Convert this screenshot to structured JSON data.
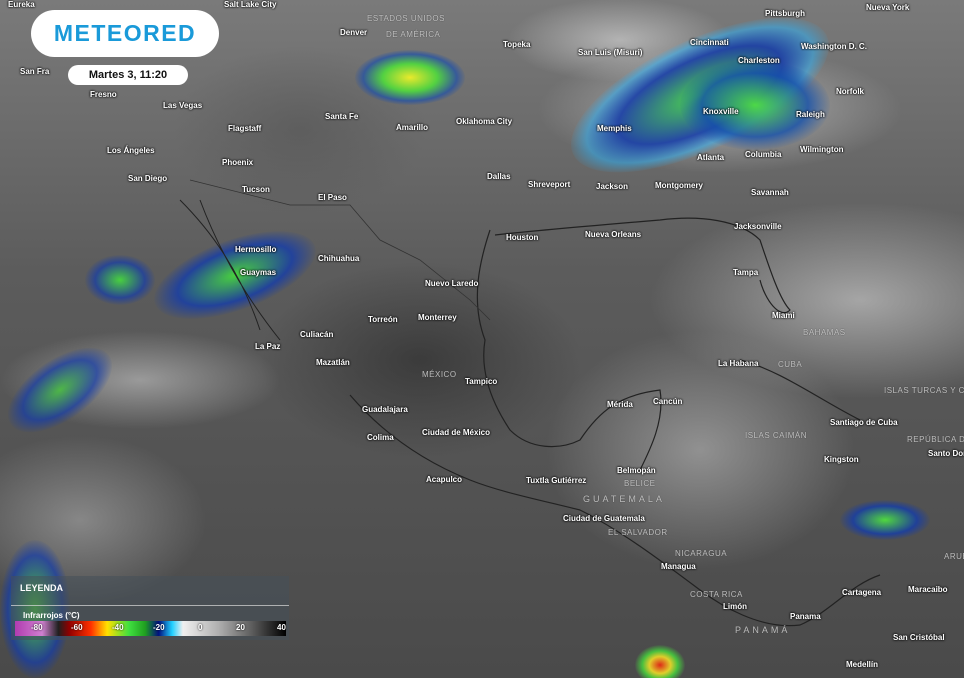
{
  "brand": {
    "logo_text": "METEORED",
    "datetime": "Martes 3, 11:20"
  },
  "legend": {
    "title": "LEYENDA",
    "subtitle": "Infrarrojos (°C)",
    "ticks": [
      "-80",
      "-60",
      "-40",
      "-20",
      "0",
      "20",
      "40"
    ]
  },
  "cities": [
    "Eureka",
    "San Fra",
    "Fresno",
    "Salt Lake City",
    "Las Vegas",
    "Denver",
    "Flagstaff",
    "Santa Fe",
    "Amarillo",
    "Topeka",
    "Oklahoma City",
    "Los Ángeles",
    "Phoenix",
    "San Diego",
    "Tucson",
    "El Paso",
    "Dallas",
    "Shreveport",
    "Jackson",
    "Memphis",
    "Montgomery",
    "Atlanta",
    "Columbia",
    "Savannah",
    "Wilmington",
    "Knoxville",
    "Raleigh",
    "Norfolk",
    "Charleston",
    "Cincinnati",
    "San Luis (Misuri)",
    "Pittsburgh",
    "Washington D. C.",
    "Nueva York",
    "Jacksonville",
    "Houston",
    "Nueva Orleans",
    "Tampa",
    "Miami",
    "Hermosillo",
    "Chihuahua",
    "Guaymas",
    "Nuevo Laredo",
    "Culiacán",
    "Torreón",
    "Monterrey",
    "La Paz",
    "Mazatlán",
    "Tampico",
    "Guadalajara",
    "Colima",
    "Ciudad de México",
    "Acapulco",
    "Mérida",
    "Cancún",
    "La Habana",
    "Santiago de Cuba",
    "Santo Dom",
    "Kingston",
    "Belmopán",
    "Tuxtla Gutiérrez",
    "Ciudad de Guatemala",
    "Managua",
    "Limón",
    "Cartagena",
    "Maracaibo",
    "Panama",
    "San Cristóbal",
    "Medellín"
  ],
  "countries": [
    "ESTADOS UNIDOS",
    "DE AMÉRICA",
    "MÉXICO",
    "CUBA",
    "BAHAMAS",
    "ISLAS TURCAS Y CAI",
    "ISLAS CAIMÁN",
    "REPÚBLICA DO",
    "BELICE",
    "GUATEMALA",
    "EL SALVADOR",
    "NICARAGUA",
    "COSTA RICA",
    "PANAMÁ",
    "ARUB"
  ],
  "colors": {
    "brand": "#1a9ad9",
    "storm_green": "#40e040",
    "storm_blue": "#0030a0",
    "storm_cyan": "#20c0ff"
  }
}
